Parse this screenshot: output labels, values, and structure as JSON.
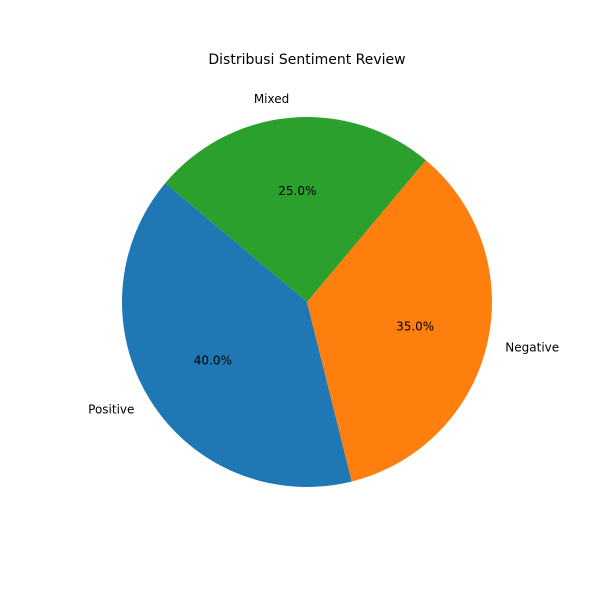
{
  "chart_data": {
    "type": "pie",
    "title": "Distribusi Sentiment Review",
    "slices": [
      {
        "label": "Positive",
        "value": 40.0,
        "pct_label": "40.0%",
        "color": "#1f77b4"
      },
      {
        "label": "Negative",
        "value": 35.0,
        "pct_label": "35.0%",
        "color": "#ff7f0e"
      },
      {
        "label": "Mixed",
        "value": 25.0,
        "pct_label": "25.0%",
        "color": "#2ca02c"
      }
    ],
    "start_angle_deg": 140,
    "direction": "counterclockwise"
  }
}
